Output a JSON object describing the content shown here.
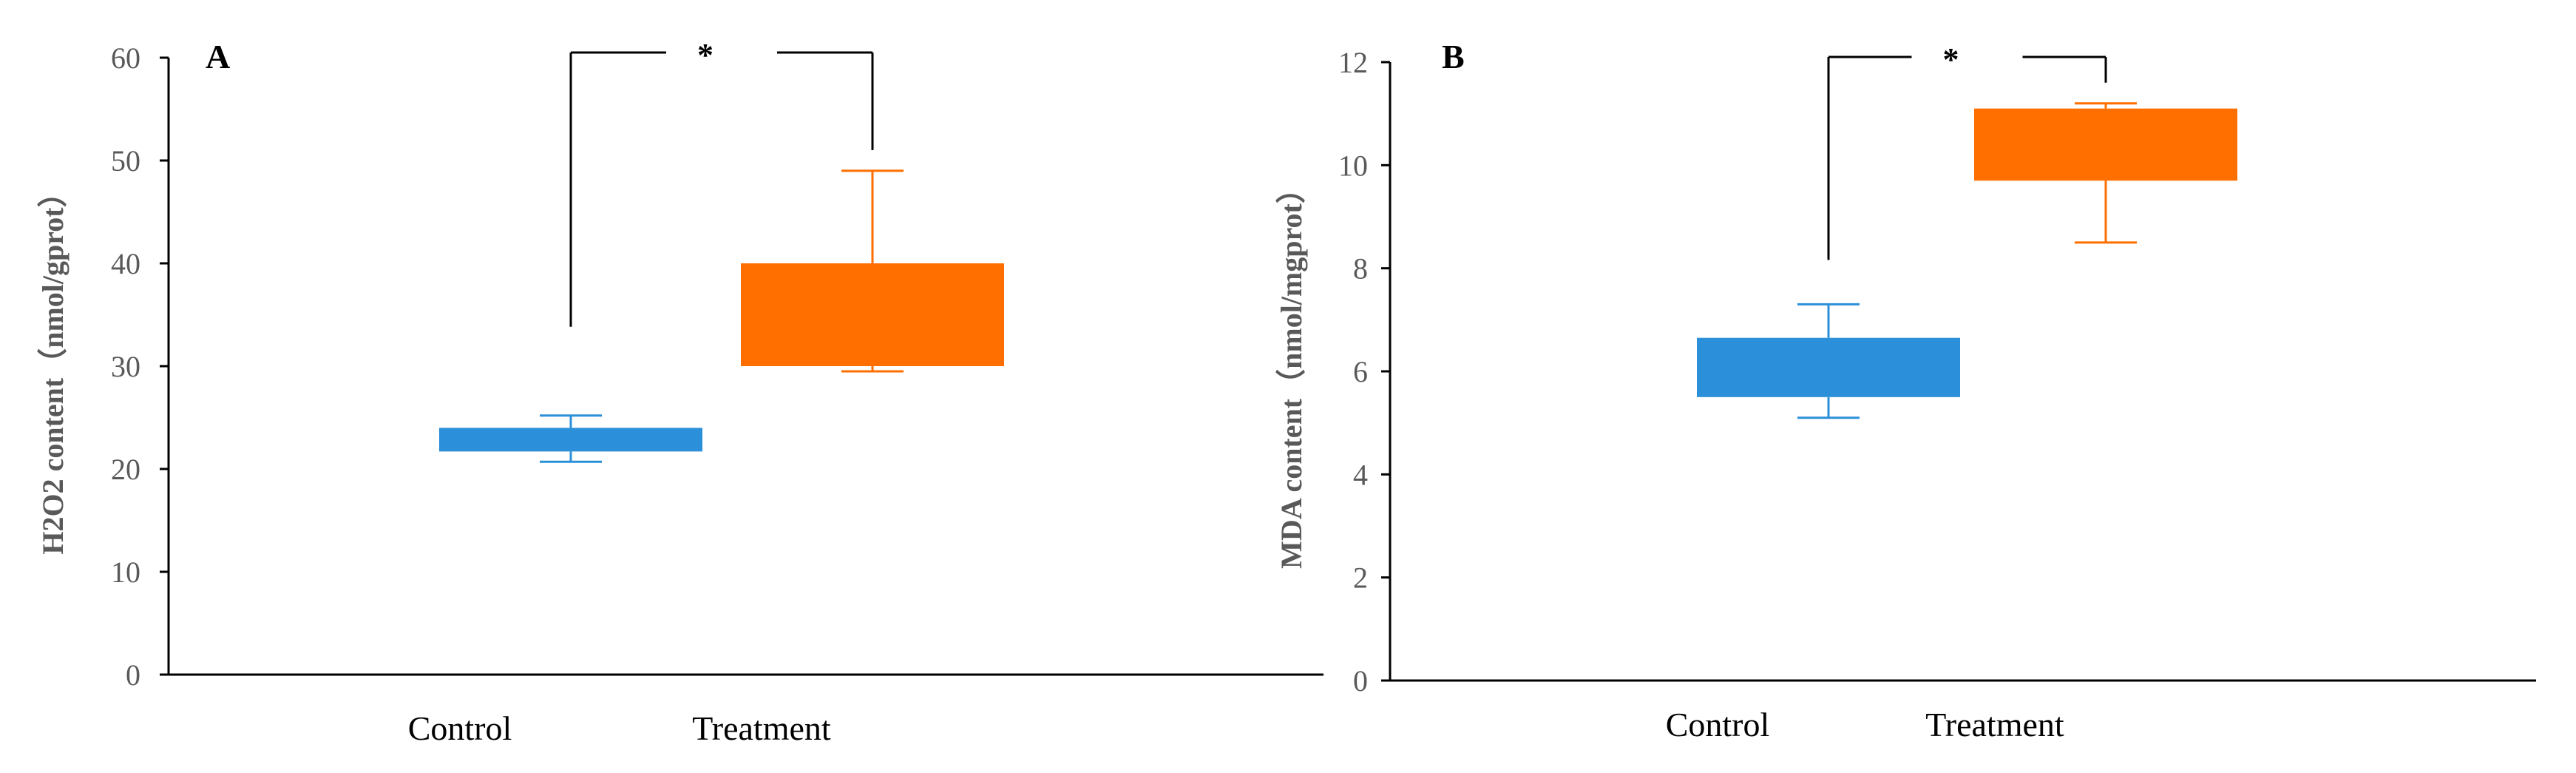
{
  "colors": {
    "control": "#2B90D9",
    "treatment": "#FF6F00",
    "axis": "#000000",
    "tick_label": "#595959"
  },
  "chart_data": [
    {
      "type": "box",
      "panel_label": "A",
      "ylabel": "H2O2 content（nmol/gprot）",
      "xlabel": "",
      "ylim": [
        0,
        60
      ],
      "y_ticks": [
        0,
        10,
        20,
        30,
        40,
        50,
        60
      ],
      "y_tick_labels": [
        "0",
        "10",
        "20",
        "30",
        "40",
        "50",
        "60"
      ],
      "grid": false,
      "categories": [
        "Control",
        "Treatment"
      ],
      "series": [
        {
          "category": "Control",
          "min": 20.7,
          "q1": 21.7,
          "median": 22.5,
          "q3": 24.0,
          "max": 25.2,
          "color": "#2B90D9"
        },
        {
          "category": "Treatment",
          "min": 29.5,
          "q1": 30.0,
          "median": 30.0,
          "q3": 40.0,
          "max": 49.0,
          "color": "#FF6F00"
        }
      ],
      "significance": {
        "label": "*",
        "between": [
          "Control",
          "Treatment"
        ],
        "level": 60.5
      }
    },
    {
      "type": "box",
      "panel_label": "B",
      "ylabel": "MDA content（nmol/mgprot）",
      "xlabel": "",
      "ylim": [
        0,
        12
      ],
      "y_ticks": [
        0,
        2,
        4,
        6,
        8,
        10,
        12
      ],
      "y_tick_labels": [
        "0",
        "2",
        "4",
        "6",
        "8",
        "10",
        "12"
      ],
      "grid": false,
      "categories": [
        "Control",
        "Treatment"
      ],
      "series": [
        {
          "category": "Control",
          "min": 5.1,
          "q1": 5.5,
          "median": 5.5,
          "q3": 6.65,
          "max": 7.3,
          "color": "#2B90D9"
        },
        {
          "category": "Treatment",
          "min": 8.5,
          "q1": 9.7,
          "median": 9.7,
          "q3": 11.1,
          "max": 11.2,
          "color": "#FF6F00"
        }
      ],
      "significance": {
        "label": "*",
        "between": [
          "Control",
          "Treatment"
        ],
        "level": 12.1
      }
    }
  ]
}
